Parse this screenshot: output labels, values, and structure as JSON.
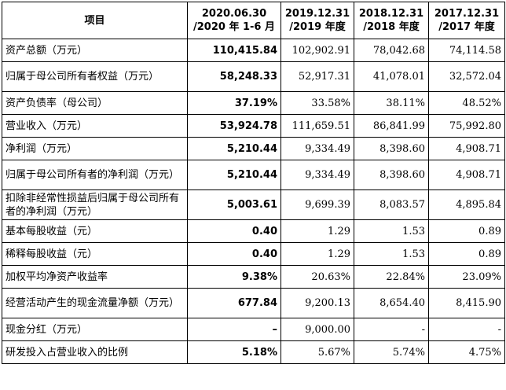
{
  "table": {
    "header": [
      "项目",
      "2020.06.30\n/2020 年 1-6 月",
      "2019.12.31\n/2019 年度",
      "2018.12.31\n/2018 年度",
      "2017.12.31\n/2017 年度"
    ],
    "rows": [
      [
        "资产总额（万元）",
        "110,415.84",
        "102,902.91",
        "78,042.68",
        "74,114.58"
      ],
      [
        "归属于母公司所有者权益（万元）",
        "58,248.33",
        "52,917.31",
        "41,078.01",
        "32,572.04"
      ],
      [
        "资产负债率（母公司）",
        "37.19%",
        "33.58%",
        "38.11%",
        "48.52%"
      ],
      [
        "营业收入（万元）",
        "53,924.78",
        "111,659.51",
        "86,841.99",
        "75,992.80"
      ],
      [
        "净利润（万元）",
        "5,210.44",
        "9,334.49",
        "8,398.60",
        "4,908.71"
      ],
      [
        "归属于母公司所有者的净利润（万元）",
        "5,210.44",
        "9,334.49",
        "8,398.60",
        "4,908.71"
      ],
      [
        "扣除非经常性损益后归属于母公司所有者的净利润（万元）",
        "5,003.61",
        "9,699.39",
        "8,083.57",
        "4,895.84"
      ],
      [
        "基本每股收益（元）",
        "0.40",
        "1.29",
        "1.53",
        "0.89"
      ],
      [
        "稀释每股收益（元）",
        "0.40",
        "1.29",
        "1.53",
        "0.89"
      ],
      [
        "加权平均净资产收益率",
        "9.38%",
        "20.63%",
        "22.84%",
        "23.09%"
      ],
      [
        "经营活动产生的现金流量净额（万元）",
        "677.84",
        "9,200.13",
        "8,654.40",
        "8,415.90"
      ],
      [
        "现金分红（万元）",
        "–",
        "9,000.00",
        "-",
        "-"
      ],
      [
        "研发投入占营业收入的比例",
        "5.18%",
        "5.67%",
        "5.74%",
        "4.75%"
      ]
    ]
  }
}
